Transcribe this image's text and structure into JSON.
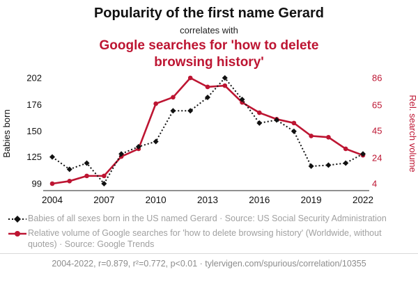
{
  "title": {
    "line1": "Popularity of the first name Gerard",
    "line2": "correlates with",
    "line3": "Google searches for 'how to delete browsing history'"
  },
  "colors": {
    "accent": "#bd1532",
    "black": "#111111",
    "legend_text": "#a0a0a0",
    "footer_text": "#8c8c8c"
  },
  "chart_data": {
    "type": "line",
    "x": [
      2004,
      2005,
      2006,
      2007,
      2008,
      2009,
      2010,
      2011,
      2012,
      2013,
      2014,
      2015,
      2016,
      2017,
      2018,
      2019,
      2020,
      2021,
      2022
    ],
    "x_tick_labels": [
      "2004",
      "2007",
      "2010",
      "2013",
      "2016",
      "2019",
      "2022"
    ],
    "left_axis": {
      "label": "Babies born",
      "ticks": [
        99,
        125,
        150,
        176,
        202
      ],
      "range": [
        99,
        202
      ]
    },
    "right_axis": {
      "label": "Rel. search volume",
      "ticks": [
        4,
        24,
        45,
        65,
        86
      ],
      "range": [
        4,
        86
      ]
    },
    "grid": false,
    "legend_position": "bottom",
    "series": [
      {
        "name": "Babies of all sexes born in the US named Gerard",
        "axis": "left",
        "color": "#111111",
        "style": "dotted",
        "marker": "diamond",
        "values": [
          125,
          113,
          119,
          99,
          128,
          135,
          140,
          170,
          170,
          183,
          202,
          181,
          158,
          161,
          150,
          116,
          117,
          119,
          128
        ]
      },
      {
        "name": "Relative volume of Google searches for 'how to delete browsing history'",
        "axis": "right",
        "color": "#bd1532",
        "style": "solid",
        "marker": "circle",
        "values": [
          4,
          6,
          10,
          10,
          25,
          31,
          66,
          71,
          86,
          79,
          80,
          67,
          59,
          54,
          51,
          41,
          40,
          31,
          26
        ]
      }
    ]
  },
  "legend": [
    {
      "text": "Babies of all sexes born in the US named Gerard · Source: US Social Security Administration"
    },
    {
      "text": "Relative volume of Google searches for 'how to delete browsing history' (Worldwide, without quotes) · Source: Google Trends"
    }
  ],
  "footer": "2004-2022, r=0.879, r²=0.772, p<0.01 · tylervigen.com/spurious/correlation/10355"
}
